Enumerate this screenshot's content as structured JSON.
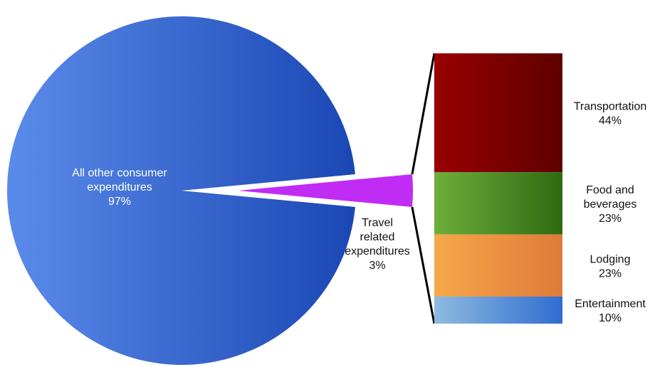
{
  "chart_data": {
    "type": "pie",
    "pie": {
      "slices": [
        {
          "label_lines": [
            "All other consumer",
            "expenditures"
          ],
          "value": 97,
          "value_label": "97%",
          "color": "#2a5fd0"
        },
        {
          "label_lines": [
            "Travel",
            "related",
            "expenditures"
          ],
          "value": 3,
          "value_label": "3%",
          "color": "#c12cf5",
          "exploded": true
        }
      ]
    },
    "breakdown": {
      "type": "stacked-bar",
      "of_slice": "Travel related expenditures",
      "segments": [
        {
          "label_lines": [
            "Transportation"
          ],
          "value": 44,
          "value_label": "44%",
          "color_start": "#990000",
          "color_end": "#5e0000"
        },
        {
          "label_lines": [
            "Food and",
            "beverages"
          ],
          "value": 23,
          "value_label": "23%",
          "color_start": "#6cae3a",
          "color_end": "#2f6a12"
        },
        {
          "label_lines": [
            "Lodging"
          ],
          "value": 23,
          "value_label": "23%",
          "color_start": "#f6a84a",
          "color_end": "#e07a3a"
        },
        {
          "label_lines": [
            "Entertainment"
          ],
          "value": 10,
          "value_label": "10%",
          "color_start": "#8ebbe0",
          "color_end": "#2f6cd0"
        }
      ]
    },
    "legend": "none"
  }
}
